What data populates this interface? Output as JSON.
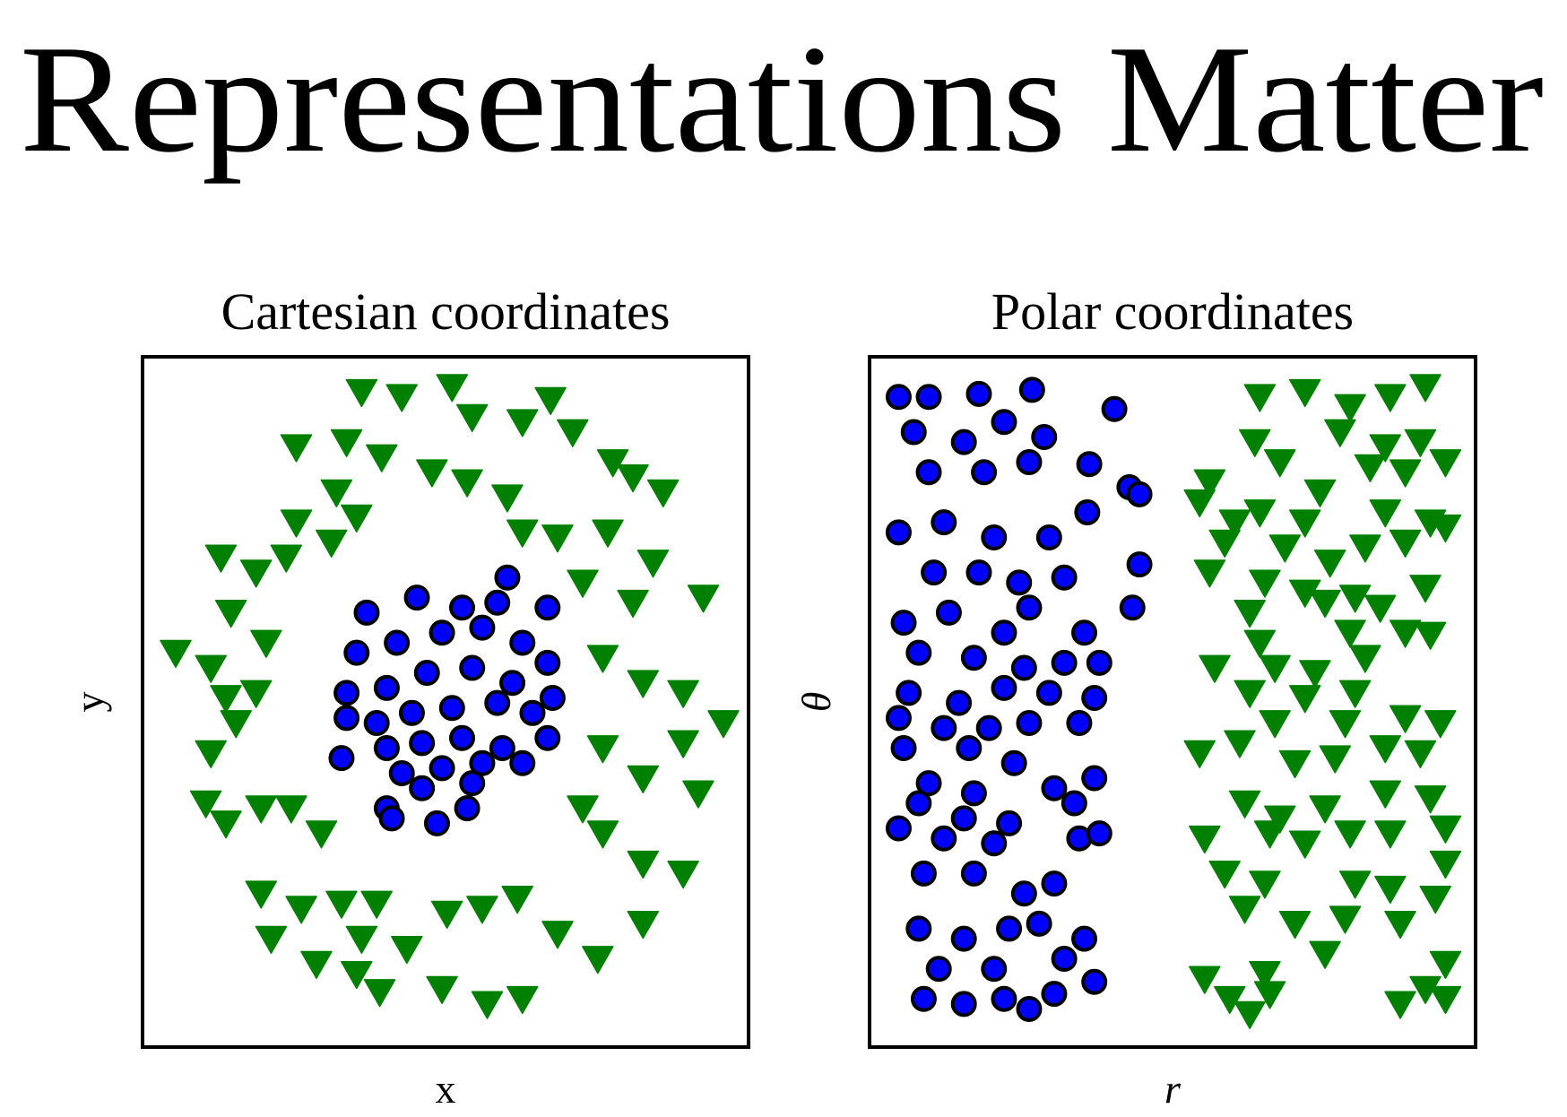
{
  "title": "Representations Matter",
  "chart_data": [
    {
      "type": "scatter",
      "title": "Cartesian coordinates",
      "xlabel": "x",
      "ylabel": "y",
      "xlim": [
        0,
        603
      ],
      "ylim": [
        0,
        688
      ],
      "series": [
        {
          "color": "#008000",
          "marker": "triangle-down",
          "x": [
            218,
            258,
            308,
            406,
            328,
            378,
            428,
            153,
            203,
            238,
            288,
            323,
            363,
            468,
            488,
            518,
            193,
            213,
            153,
            78,
            113,
            143,
            188,
            378,
            413,
            463,
            508,
            438,
            488,
            558,
            33,
            88,
            123,
            68,
            83,
            113,
            93,
            68,
            458,
            498,
            538,
            578,
            458,
            538,
            498,
            553,
            63,
            118,
            148,
            83,
            178,
            438,
            458,
            498,
            538,
            118,
            158,
            198,
            233,
            303,
            338,
            373,
            498,
            128,
            218,
            263,
            413,
            453,
            173,
            213,
            298,
            343,
            378,
            236
          ],
          "y": [
            653,
            648,
            658,
            645,
            628,
            623,
            613,
            598,
            603,
            588,
            573,
            563,
            548,
            583,
            568,
            553,
            553,
            528,
            523,
            488,
            473,
            488,
            503,
            513,
            508,
            513,
            483,
            463,
            443,
            448,
            393,
            433,
            403,
            378,
            348,
            353,
            323,
            293,
            388,
            363,
            353,
            323,
            298,
            303,
            268,
            253,
            243,
            238,
            238,
            223,
            213,
            238,
            213,
            183,
            173,
            153,
            138,
            143,
            143,
            133,
            138,
            148,
            123,
            108,
            108,
            98,
            113,
            88,
            83,
            73,
            58,
            43,
            48,
            55
          ]
        },
        {
          "color": "#0000ff",
          "marker": "circle",
          "x": [
            223,
            273,
            318,
            363,
            403,
            353,
            213,
            253,
            298,
            338,
            378,
            403,
            203,
            243,
            283,
            328,
            368,
            408,
            203,
            233,
            268,
            308,
            353,
            388,
            198,
            243,
            278,
            318,
            358,
            403,
            258,
            298,
            338,
            378,
            278,
            328,
            243,
            248,
            293,
            323
          ],
          "y": [
            433,
            448,
            438,
            468,
            438,
            443,
            393,
            403,
            413,
            418,
            403,
            383,
            353,
            358,
            373,
            378,
            363,
            348,
            328,
            323,
            333,
            338,
            343,
            333,
            288,
            298,
            303,
            308,
            298,
            308,
            273,
            278,
            283,
            283,
            258,
            263,
            238,
            228,
            223,
            238
          ]
        }
      ]
    },
    {
      "type": "scatter",
      "title": "Polar coordinates",
      "xlabel": "r",
      "ylabel": "θ",
      "xlim": [
        0,
        604
      ],
      "ylim": [
        0,
        688
      ],
      "series": [
        {
          "color": "#0000ff",
          "marker": "circle",
          "x": [
            29,
            59,
            109,
            162,
            244,
            44,
            94,
            134,
            174,
            59,
            114,
            159,
            219,
            259,
            269,
            29,
            74,
            124,
            179,
            217,
            64,
            109,
            149,
            194,
            269,
            34,
            79,
            134,
            159,
            262,
            214,
            49,
            104,
            154,
            194,
            229,
            39,
            89,
            134,
            179,
            224,
            29,
            74,
            119,
            159,
            209,
            34,
            99,
            144,
            224,
            59,
            104,
            184,
            49,
            94,
            139,
            204,
            29,
            74,
            124,
            209,
            229,
            54,
            104,
            154,
            184,
            49,
            94,
            139,
            169,
            214,
            69,
            124,
            194,
            224,
            54,
            94,
            134,
            159,
            184
          ],
          "y": [
            648,
            648,
            651,
            655,
            636,
            613,
            603,
            623,
            608,
            573,
            573,
            583,
            581,
            558,
            551,
            513,
            523,
            508,
            508,
            533,
            473,
            473,
            463,
            468,
            481,
            423,
            433,
            413,
            438,
            438,
            413,
            393,
            388,
            378,
            383,
            383,
            353,
            343,
            358,
            353,
            348,
            328,
            318,
            318,
            323,
            323,
            298,
            298,
            283,
            268,
            263,
            253,
            258,
            243,
            228,
            223,
            243,
            218,
            208,
            203,
            208,
            213,
            173,
            173,
            153,
            163,
            118,
            108,
            118,
            123,
            108,
            78,
            78,
            88,
            65,
            48,
            43,
            48,
            38,
            53
          ]
        },
        {
          "color": "#008000",
          "marker": "triangle-down",
          "x": [
            389,
            434,
            479,
            519,
            554,
            384,
            469,
            514,
            549,
            409,
            339,
            389,
            449,
            499,
            534,
            574,
            329,
            364,
            434,
            514,
            559,
            354,
            414,
            459,
            494,
            534,
            574,
            339,
            394,
            434,
            484,
            554,
            379,
            454,
            509,
            534,
            389,
            479,
            559,
            344,
            404,
            444,
            494,
            379,
            434,
            484,
            404,
            474,
            534,
            569,
            329,
            369,
            424,
            464,
            514,
            549,
            374,
            409,
            454,
            514,
            559,
            334,
            399,
            434,
            479,
            519,
            574,
            354,
            394,
            484,
            519,
            564,
            574,
            374,
            424,
            474,
            529,
            334,
            394,
            454,
            399,
            359,
            379,
            529,
            554,
            574,
            574
          ],
          "y": [
            648,
            653,
            638,
            648,
            658,
            603,
            613,
            598,
            603,
            583,
            563,
            533,
            553,
            578,
            573,
            583,
            543,
            523,
            523,
            533,
            523,
            503,
            498,
            483,
            498,
            503,
            518,
            473,
            463,
            453,
            448,
            458,
            433,
            443,
            438,
            413,
            403,
            413,
            411,
            378,
            378,
            373,
            388,
            353,
            348,
            353,
            323,
            323,
            328,
            323,
            293,
            303,
            283,
            288,
            298,
            293,
            243,
            228,
            238,
            253,
            248,
            208,
            213,
            203,
            213,
            213,
            218,
            173,
            163,
            163,
            158,
            148,
            183,
            138,
            123,
            128,
            123,
            68,
            73,
            93,
            53,
            48,
            33,
            43,
            58,
            83,
            48
          ]
        }
      ]
    }
  ]
}
